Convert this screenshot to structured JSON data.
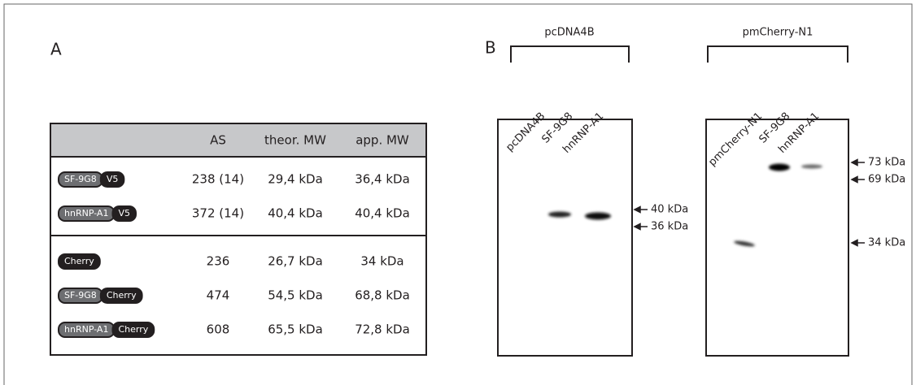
{
  "panel_a": {
    "label": "A",
    "table": {
      "header": [
        "AS",
        "theor. MW",
        "app. MW"
      ],
      "rows": [
        {
          "construct": [
            "SF-9G8",
            "V5"
          ],
          "cells": [
            "238 (14)",
            "29,4 kDa",
            "36,4 kDa"
          ]
        },
        {
          "construct": [
            "hnRNP-A1",
            "V5"
          ],
          "cells": [
            "372 (14)",
            "40,4 kDa",
            "40,4 kDa"
          ]
        },
        {
          "construct": [
            "Cherry"
          ],
          "cells": [
            "236",
            "26,7 kDa",
            "34 kDa"
          ]
        },
        {
          "construct": [
            "SF-9G8",
            "Cherry"
          ],
          "cells": [
            "474",
            "54,5 kDa",
            "68,8 kDa"
          ]
        },
        {
          "construct": [
            "hnRNP-A1",
            "Cherry"
          ],
          "cells": [
            "608",
            "65,5 kDa",
            "72,8 kDa"
          ]
        }
      ]
    }
  },
  "panel_b": {
    "label": "B",
    "blots": [
      {
        "group": "pcDNA4B",
        "lanes": [
          "pcDNA4B",
          "SF-9G8",
          "hnRNP-A1"
        ],
        "markers": [
          "40 kDa",
          "36 kDa"
        ]
      },
      {
        "group": "pmCherry-N1",
        "lanes": [
          "pmCherry-N1",
          "SF-9G8",
          "hnRNP-A1"
        ],
        "markers": [
          "73 kDa",
          "69 kDa",
          "34 kDa"
        ]
      }
    ]
  }
}
